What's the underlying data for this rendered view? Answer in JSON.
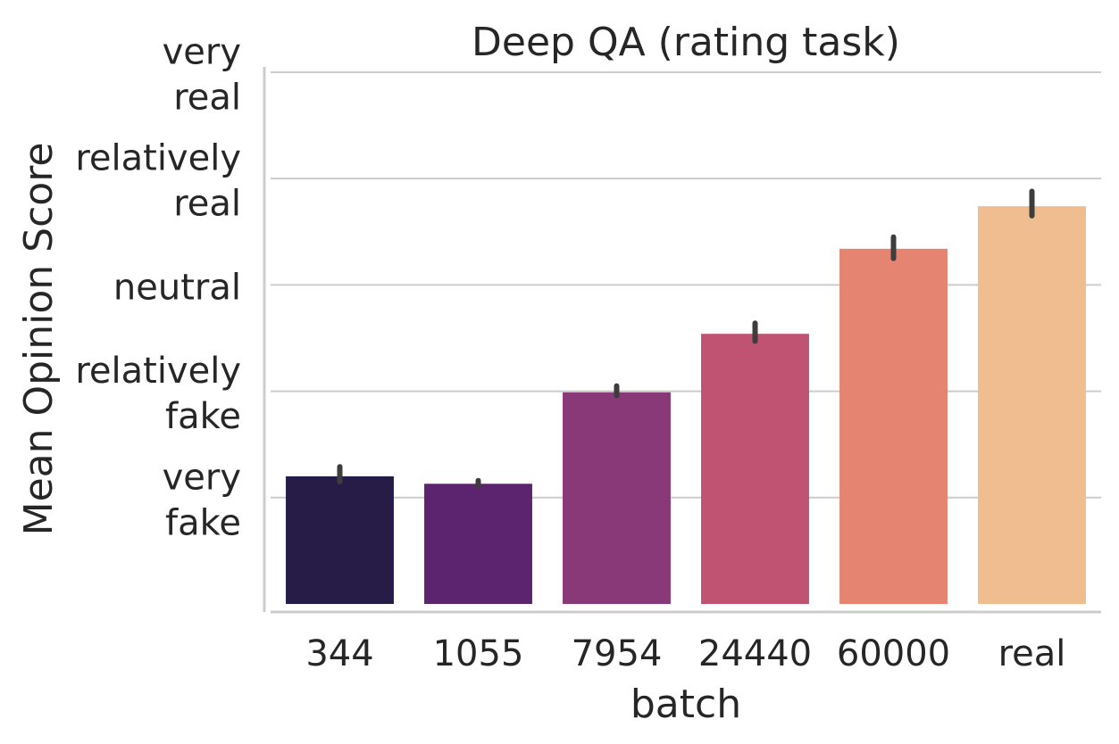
{
  "chart_data": {
    "type": "bar",
    "title": "Deep QA (rating task)",
    "xlabel": "batch",
    "ylabel": "Mean Opinion Score",
    "categories": [
      "344",
      "1055",
      "7954",
      "24440",
      "60000",
      "real"
    ],
    "values": [
      1.2,
      1.13,
      1.99,
      2.54,
      3.34,
      3.74
    ],
    "error_low": [
      1.15,
      1.11,
      1.96,
      2.47,
      3.25,
      3.65
    ],
    "error_high": [
      1.29,
      1.16,
      2.05,
      2.64,
      3.45,
      3.88
    ],
    "colors": [
      "#271b48",
      "#5c246e",
      "#8a3978",
      "#c05272",
      "#e58471",
      "#efbd8f"
    ],
    "ylim": [
      0,
      5.05
    ],
    "yticks": [
      {
        "value": 1,
        "lines": [
          "very",
          "fake"
        ]
      },
      {
        "value": 2,
        "lines": [
          "relatively",
          "fake"
        ]
      },
      {
        "value": 3,
        "lines": [
          "neutral"
        ]
      },
      {
        "value": 4,
        "lines": [
          "relatively",
          "real"
        ]
      },
      {
        "value": 5,
        "lines": [
          "very",
          "real"
        ]
      }
    ],
    "grid": true
  }
}
